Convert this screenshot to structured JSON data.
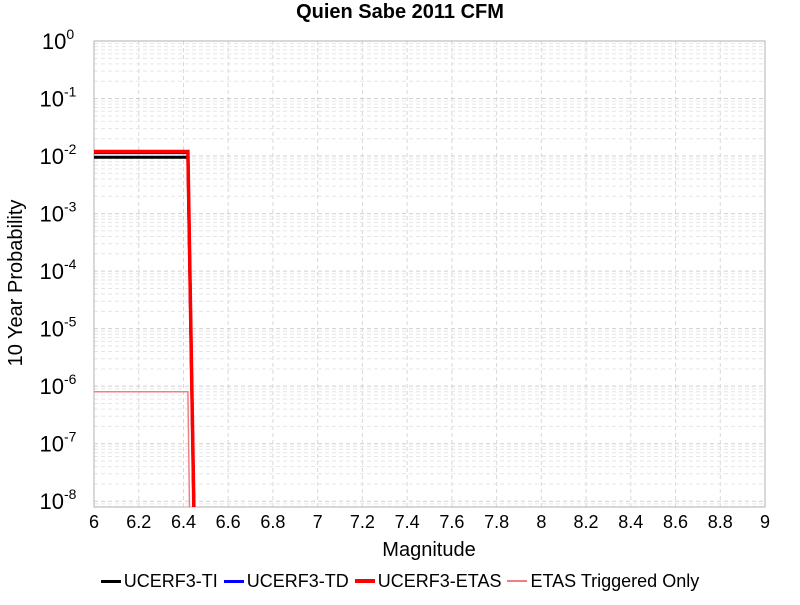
{
  "chart_data": {
    "type": "line",
    "title": "Quien Sabe 2011 CFM",
    "xlabel": "Magnitude",
    "ylabel": "10 Year Probability",
    "xlim": [
      6,
      9
    ],
    "ylim_exponent": [
      -8.1,
      0
    ],
    "y_scale": "log",
    "x_ticks": [
      "6",
      "6.2",
      "6.4",
      "6.6",
      "6.8",
      "7",
      "7.2",
      "7.4",
      "7.6",
      "7.8",
      "8",
      "8.2",
      "8.4",
      "8.6",
      "8.8",
      "9"
    ],
    "y_tick_exponents": [
      "0",
      "-1",
      "-2",
      "-3",
      "-4",
      "-5",
      "-6",
      "-7",
      "-8"
    ],
    "y_tick_base": "10",
    "grid": true,
    "legend_position": "bottom",
    "series": [
      {
        "name": "UCERF3-TI",
        "color": "#000000",
        "width": 3,
        "x": [
          6.0,
          6.4,
          6.42,
          6.45
        ],
        "y": [
          0.0095,
          0.0095,
          0.0095,
          1e-09
        ]
      },
      {
        "name": "UCERF3-TD",
        "color": "#0000ff",
        "width": 3,
        "x": [
          6.0,
          6.4,
          6.42,
          6.45
        ],
        "y": [
          0.0115,
          0.0115,
          0.0115,
          1e-09
        ]
      },
      {
        "name": "UCERF3-ETAS",
        "color": "#ff0000",
        "width": 3.5,
        "x": [
          6.0,
          6.4,
          6.42,
          6.45
        ],
        "y": [
          0.012,
          0.012,
          0.012,
          1e-09
        ]
      },
      {
        "name": "ETAS Triggered Only",
        "color": "#f08080",
        "width": 1.5,
        "x": [
          6.0,
          6.4,
          6.42,
          6.43
        ],
        "y": [
          8e-07,
          8e-07,
          8e-07,
          1e-09
        ]
      }
    ]
  }
}
